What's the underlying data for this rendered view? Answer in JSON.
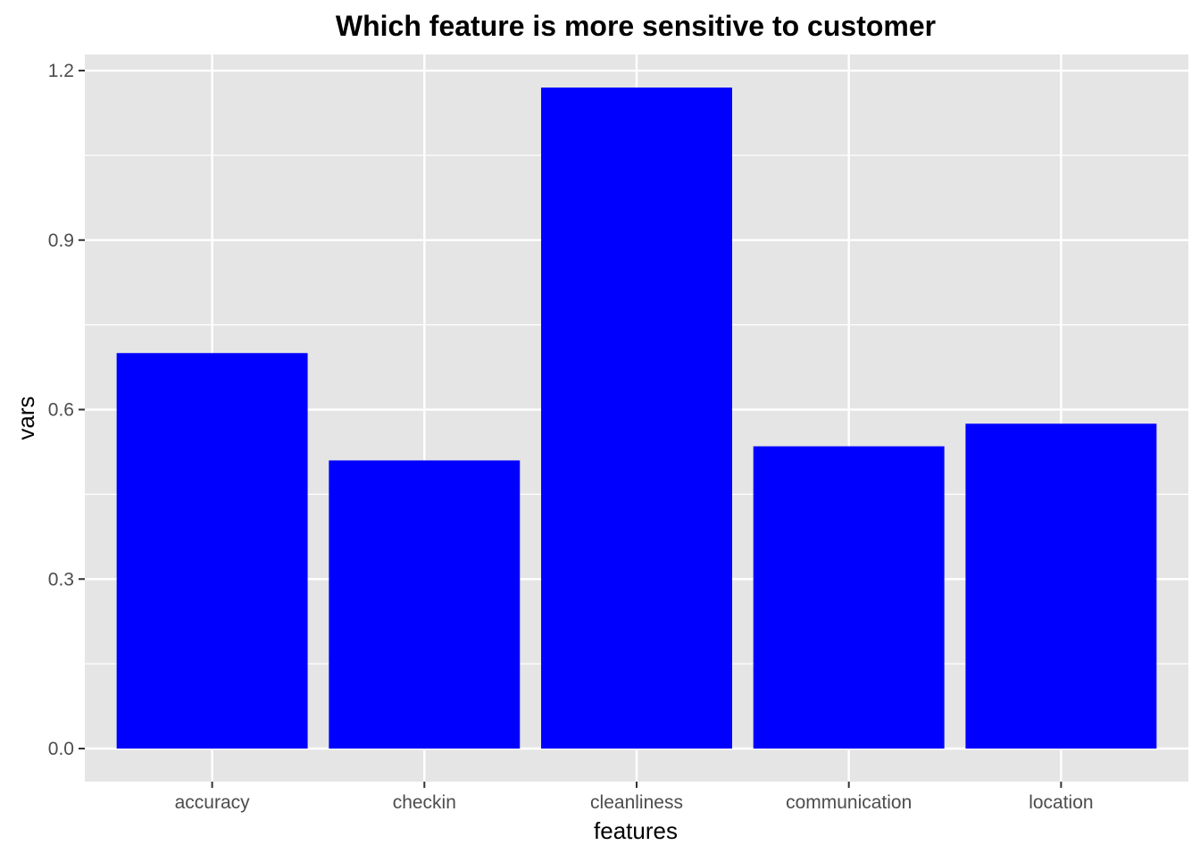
{
  "chart_data": {
    "type": "bar",
    "title": "Which feature is more sensitive to customer",
    "xlabel": "features",
    "ylabel": "vars",
    "categories": [
      "accuracy",
      "checkin",
      "cleanliness",
      "communication",
      "location"
    ],
    "values": [
      0.7,
      0.51,
      1.17,
      0.535,
      0.575
    ],
    "ylim": [
      -0.0585,
      1.2285
    ],
    "yticks": [
      0.0,
      0.3,
      0.6,
      0.9,
      1.2
    ],
    "ytick_labels": [
      "0.0",
      "0.3",
      "0.6",
      "0.9",
      "1.2"
    ],
    "grid": true,
    "legend": "none",
    "colors": {
      "bar": "#0000ff",
      "panel": "#e5e5e5",
      "grid": "#ffffff",
      "tick": "#333333"
    }
  }
}
